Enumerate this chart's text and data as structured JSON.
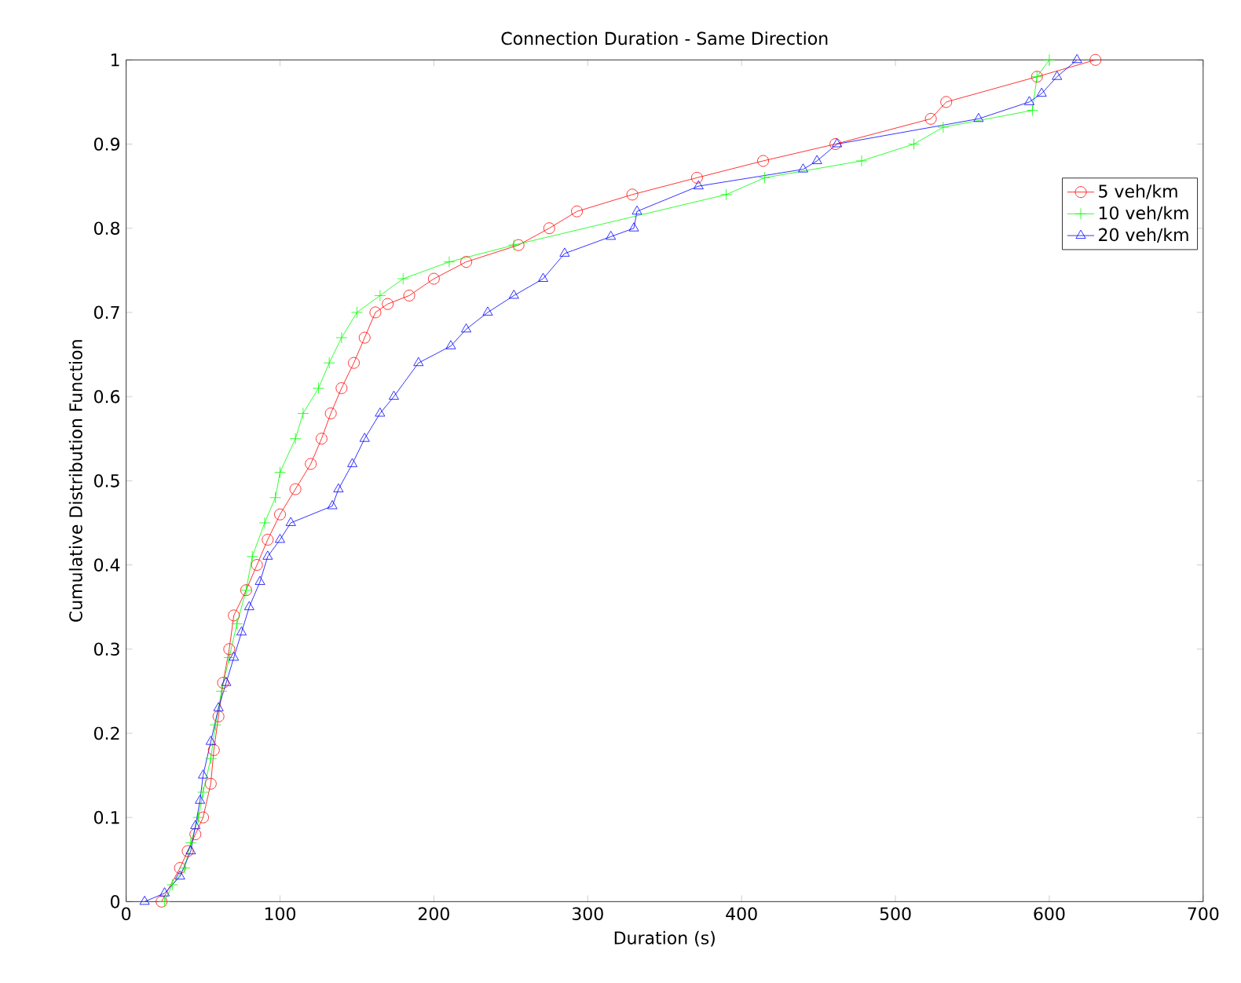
{
  "chart_data": {
    "type": "line",
    "title": "Connection Duration - Same Direction",
    "xlabel": "Duration (s)",
    "ylabel": "Cumulative Distribution Function",
    "xlim": [
      0,
      700
    ],
    "ylim": [
      0,
      1
    ],
    "xticks": [
      0,
      100,
      200,
      300,
      400,
      500,
      600,
      700
    ],
    "yticks": [
      0,
      {
        "value": 0.1,
        "label": "0.1"
      },
      {
        "value": 0.2,
        "label": "0.2"
      },
      {
        "value": 0.3,
        "label": "0.3"
      },
      {
        "value": 0.4,
        "label": "0.4"
      },
      {
        "value": 0.5,
        "label": "0.5"
      },
      {
        "value": 0.6,
        "label": "0.6"
      },
      {
        "value": 0.7,
        "label": "0.7"
      },
      {
        "value": 0.8,
        "label": "0.8"
      },
      {
        "value": 0.9,
        "label": "0.9"
      },
      1
    ],
    "grid": false,
    "legend": "top right",
    "line_style": "solid",
    "series": [
      {
        "name": "5 veh/km",
        "color": "#ff0000",
        "marker": "circle",
        "x": [
          23,
          35,
          40,
          45,
          50,
          55,
          57,
          60,
          63,
          67,
          70,
          78,
          85,
          92,
          100,
          110,
          120,
          127,
          133,
          140,
          148,
          155,
          162,
          170,
          184,
          200,
          221,
          255,
          275,
          293,
          329,
          371,
          414,
          461,
          523,
          533,
          592,
          630
        ],
        "values": [
          0,
          0.04,
          0.06,
          0.08,
          0.1,
          0.14,
          0.18,
          0.22,
          0.26,
          0.3,
          0.34,
          0.37,
          0.4,
          0.43,
          0.46,
          0.49,
          0.52,
          0.55,
          0.58,
          0.61,
          0.64,
          0.67,
          0.7,
          0.71,
          0.72,
          0.74,
          0.76,
          0.78,
          0.8,
          0.82,
          0.84,
          0.86,
          0.88,
          0.9,
          0.93,
          0.95,
          0.98,
          1.0
        ]
      },
      {
        "name": "10 veh/km",
        "color": "#00ff00",
        "marker": "cross",
        "x": [
          25,
          30,
          38,
          42,
          47,
          50,
          55,
          58,
          62,
          67,
          72,
          78,
          82,
          90,
          97,
          100,
          110,
          115,
          125,
          132,
          140,
          150,
          165,
          180,
          210,
          252,
          390,
          415,
          478,
          512,
          531,
          589,
          592,
          600
        ],
        "values": [
          0,
          0.02,
          0.04,
          0.07,
          0.1,
          0.13,
          0.17,
          0.21,
          0.25,
          0.29,
          0.33,
          0.37,
          0.41,
          0.45,
          0.48,
          0.51,
          0.55,
          0.58,
          0.61,
          0.64,
          0.67,
          0.7,
          0.72,
          0.74,
          0.76,
          0.78,
          0.84,
          0.86,
          0.88,
          0.9,
          0.92,
          0.94,
          0.98,
          1.0
        ]
      },
      {
        "name": "20 veh/km",
        "color": "#0000ff",
        "marker": "triangle",
        "x": [
          12,
          25,
          35,
          42,
          45,
          48,
          50,
          55,
          60,
          65,
          70,
          75,
          80,
          87,
          92,
          100,
          107,
          134,
          138,
          147,
          155,
          165,
          174,
          190,
          211,
          221,
          235,
          252,
          271,
          285,
          315,
          330,
          332,
          372,
          440,
          449,
          462,
          554,
          587,
          595,
          605,
          618
        ],
        "values": [
          0,
          0.01,
          0.03,
          0.06,
          0.09,
          0.12,
          0.15,
          0.19,
          0.23,
          0.26,
          0.29,
          0.32,
          0.35,
          0.38,
          0.41,
          0.43,
          0.45,
          0.47,
          0.49,
          0.52,
          0.55,
          0.58,
          0.6,
          0.64,
          0.66,
          0.68,
          0.7,
          0.72,
          0.74,
          0.77,
          0.79,
          0.8,
          0.82,
          0.85,
          0.87,
          0.88,
          0.9,
          0.93,
          0.95,
          0.96,
          0.98,
          1.0
        ]
      }
    ]
  }
}
